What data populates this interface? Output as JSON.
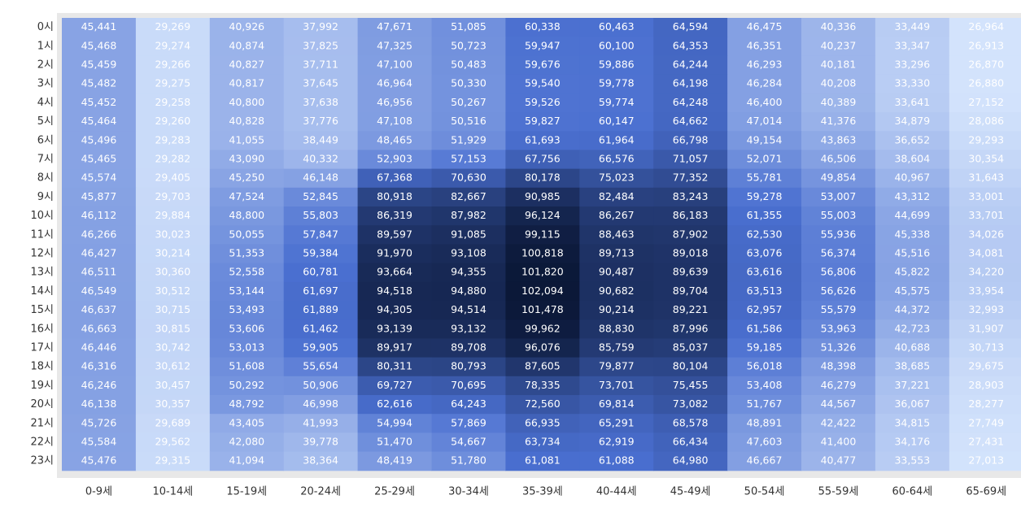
{
  "chart_data": {
    "type": "heatmap",
    "x_categories": [
      "0-9세",
      "10-14세",
      "15-19세",
      "20-24세",
      "25-29세",
      "30-34세",
      "35-39세",
      "40-44세",
      "45-49세",
      "50-54세",
      "55-59세",
      "60-64세",
      "65-69세"
    ],
    "y_categories": [
      "0시",
      "1시",
      "2시",
      "3시",
      "4시",
      "5시",
      "6시",
      "7시",
      "8시",
      "9시",
      "10시",
      "11시",
      "12시",
      "13시",
      "14시",
      "15시",
      "16시",
      "17시",
      "18시",
      "19시",
      "20시",
      "21시",
      "22시",
      "23시"
    ],
    "colors": [
      "#d3e3fc",
      "#4a6fd0",
      "#0b1838"
    ],
    "values": [
      [
        45441,
        29269,
        40926,
        37992,
        47671,
        51085,
        60338,
        60463,
        64594,
        46475,
        40336,
        33449,
        26964
      ],
      [
        45468,
        29274,
        40874,
        37825,
        47325,
        50723,
        59947,
        60100,
        64353,
        46351,
        40237,
        33347,
        26913
      ],
      [
        45459,
        29266,
        40827,
        37711,
        47100,
        50483,
        59676,
        59886,
        64244,
        46293,
        40181,
        33296,
        26870
      ],
      [
        45482,
        29275,
        40817,
        37645,
        46964,
        50330,
        59540,
        59778,
        64198,
        46284,
        40208,
        33330,
        26880
      ],
      [
        45452,
        29258,
        40800,
        37638,
        46956,
        50267,
        59526,
        59774,
        64248,
        46400,
        40389,
        33641,
        27152
      ],
      [
        45464,
        29260,
        40828,
        37776,
        47108,
        50516,
        59827,
        60147,
        64662,
        47014,
        41376,
        34879,
        28086
      ],
      [
        45496,
        29283,
        41055,
        38449,
        48465,
        51929,
        61693,
        61964,
        66798,
        49154,
        43863,
        36652,
        29293
      ],
      [
        45465,
        29282,
        43090,
        40332,
        52903,
        57153,
        67756,
        66576,
        71057,
        52071,
        46506,
        38604,
        30354
      ],
      [
        45574,
        29405,
        45250,
        46148,
        67368,
        70630,
        80178,
        75023,
        77352,
        55781,
        49854,
        40967,
        31643
      ],
      [
        45877,
        29703,
        47524,
        52845,
        80918,
        82667,
        90985,
        82484,
        83243,
        59278,
        53007,
        43312,
        33001
      ],
      [
        46112,
        29884,
        48800,
        55803,
        86319,
        87982,
        96124,
        86267,
        86183,
        61355,
        55003,
        44699,
        33701
      ],
      [
        46266,
        30023,
        50055,
        57847,
        89597,
        91085,
        99115,
        88463,
        87902,
        62530,
        55936,
        45338,
        34026
      ],
      [
        46427,
        30214,
        51353,
        59384,
        91970,
        93108,
        100818,
        89713,
        89018,
        63076,
        56374,
        45516,
        34081
      ],
      [
        46511,
        30360,
        52558,
        60781,
        93664,
        94355,
        101820,
        90487,
        89639,
        63616,
        56806,
        45822,
        34220
      ],
      [
        46549,
        30512,
        53144,
        61697,
        94518,
        94880,
        102094,
        90682,
        89704,
        63513,
        56626,
        45575,
        33954
      ],
      [
        46637,
        30715,
        53493,
        61889,
        94305,
        94514,
        101478,
        90214,
        89221,
        62957,
        55579,
        44372,
        32993
      ],
      [
        46663,
        30815,
        53606,
        61462,
        93139,
        93132,
        99962,
        88830,
        87996,
        61586,
        53963,
        42723,
        31907
      ],
      [
        46446,
        30742,
        53013,
        59905,
        89917,
        89708,
        96076,
        85759,
        85037,
        59185,
        51326,
        40688,
        30713
      ],
      [
        46316,
        30612,
        51608,
        55654,
        80311,
        80793,
        87605,
        79877,
        80104,
        56018,
        48398,
        38685,
        29675
      ],
      [
        46246,
        30457,
        50292,
        50906,
        69727,
        70695,
        78335,
        73701,
        75455,
        53408,
        46279,
        37221,
        28903
      ],
      [
        46138,
        30357,
        48792,
        46998,
        62616,
        64243,
        72560,
        69814,
        73082,
        51767,
        44567,
        36067,
        28277
      ],
      [
        45726,
        29689,
        43405,
        41993,
        54994,
        57869,
        66935,
        65291,
        68578,
        48891,
        42422,
        34815,
        27749
      ],
      [
        45584,
        29562,
        42080,
        39778,
        51470,
        54667,
        63734,
        62919,
        66434,
        47603,
        41400,
        34176,
        27431
      ],
      [
        45476,
        29315,
        41094,
        38364,
        48419,
        51780,
        61081,
        61088,
        64980,
        46667,
        40477,
        33553,
        27013
      ]
    ],
    "value_labels": [
      [
        "45,441",
        "29,269",
        "40,926",
        "37,992",
        "47,671",
        "51,085",
        "60,338",
        "60,463",
        "64,594",
        "46,475",
        "40,336",
        "33,449",
        "26,964"
      ],
      [
        "45,468",
        "29,274",
        "40,874",
        "37,825",
        "47,325",
        "50,723",
        "59,947",
        "60,100",
        "64,353",
        "46,351",
        "40,237",
        "33,347",
        "26,913"
      ],
      [
        "45,459",
        "29,266",
        "40,827",
        "37,711",
        "47,100",
        "50,483",
        "59,676",
        "59,886",
        "64,244",
        "46,293",
        "40,181",
        "33,296",
        "26,870"
      ],
      [
        "45,482",
        "29,275",
        "40,817",
        "37,645",
        "46,964",
        "50,330",
        "59,540",
        "59,778",
        "64,198",
        "46,284",
        "40,208",
        "33,330",
        "26,880"
      ],
      [
        "45,452",
        "29,258",
        "40,800",
        "37,638",
        "46,956",
        "50,267",
        "59,526",
        "59,774",
        "64,248",
        "46,400",
        "40,389",
        "33,641",
        "27,152"
      ],
      [
        "45,464",
        "29,260",
        "40,828",
        "37,776",
        "47,108",
        "50,516",
        "59,827",
        "60,147",
        "64,662",
        "47,014",
        "41,376",
        "34,879",
        "28,086"
      ],
      [
        "45,496",
        "29,283",
        "41,055",
        "38,449",
        "48,465",
        "51,929",
        "61,693",
        "61,964",
        "66,798",
        "49,154",
        "43,863",
        "36,652",
        "29,293"
      ],
      [
        "45,465",
        "29,282",
        "43,090",
        "40,332",
        "52,903",
        "57,153",
        "67,756",
        "66,576",
        "71,057",
        "52,071",
        "46,506",
        "38,604",
        "30,354"
      ],
      [
        "45,574",
        "29,405",
        "45,250",
        "46,148",
        "67,368",
        "70,630",
        "80,178",
        "75,023",
        "77,352",
        "55,781",
        "49,854",
        "40,967",
        "31,643"
      ],
      [
        "45,877",
        "29,703",
        "47,524",
        "52,845",
        "80,918",
        "82,667",
        "90,985",
        "82,484",
        "83,243",
        "59,278",
        "53,007",
        "43,312",
        "33,001"
      ],
      [
        "46,112",
        "29,884",
        "48,800",
        "55,803",
        "86,319",
        "87,982",
        "96,124",
        "86,267",
        "86,183",
        "61,355",
        "55,003",
        "44,699",
        "33,701"
      ],
      [
        "46,266",
        "30,023",
        "50,055",
        "57,847",
        "89,597",
        "91,085",
        "99,115",
        "88,463",
        "87,902",
        "62,530",
        "55,936",
        "45,338",
        "34,026"
      ],
      [
        "46,427",
        "30,214",
        "51,353",
        "59,384",
        "91,970",
        "93,108",
        "100,818",
        "89,713",
        "89,018",
        "63,076",
        "56,374",
        "45,516",
        "34,081"
      ],
      [
        "46,511",
        "30,360",
        "52,558",
        "60,781",
        "93,664",
        "94,355",
        "101,820",
        "90,487",
        "89,639",
        "63,616",
        "56,806",
        "45,822",
        "34,220"
      ],
      [
        "46,549",
        "30,512",
        "53,144",
        "61,697",
        "94,518",
        "94,880",
        "102,094",
        "90,682",
        "89,704",
        "63,513",
        "56,626",
        "45,575",
        "33,954"
      ],
      [
        "46,637",
        "30,715",
        "53,493",
        "61,889",
        "94,305",
        "94,514",
        "101,478",
        "90,214",
        "89,221",
        "62,957",
        "55,579",
        "44,372",
        "32,993"
      ],
      [
        "46,663",
        "30,815",
        "53,606",
        "61,462",
        "93,139",
        "93,132",
        "99,962",
        "88,830",
        "87,996",
        "61,586",
        "53,963",
        "42,723",
        "31,907"
      ],
      [
        "46,446",
        "30,742",
        "53,013",
        "59,905",
        "89,917",
        "89,708",
        "96,076",
        "85,759",
        "85,037",
        "59,185",
        "51,326",
        "40,688",
        "30,713"
      ],
      [
        "46,316",
        "30,612",
        "51,608",
        "55,654",
        "80,311",
        "80,793",
        "87,605",
        "79,877",
        "80,104",
        "56,018",
        "48,398",
        "38,685",
        "29,675"
      ],
      [
        "46,246",
        "30,457",
        "50,292",
        "50,906",
        "69,727",
        "70,695",
        "78,335",
        "73,701",
        "75,455",
        "53,408",
        "46,279",
        "37,221",
        "28,903"
      ],
      [
        "46,138",
        "30,357",
        "48,792",
        "46,998",
        "62,616",
        "64,243",
        "72,560",
        "69,814",
        "73,082",
        "51,767",
        "44,567",
        "36,067",
        "28,277"
      ],
      [
        "45,726",
        "29,689",
        "43,405",
        "41,993",
        "54,994",
        "57,869",
        "66,935",
        "65,291",
        "68,578",
        "48,891",
        "42,422",
        "34,815",
        "27,749"
      ],
      [
        "45,584",
        "29,562",
        "42,080",
        "39,778",
        "51,470",
        "54,667",
        "63,734",
        "62,919",
        "66,434",
        "47,603",
        "41,400",
        "34,176",
        "27,431"
      ],
      [
        "45,476",
        "29,315",
        "41,094",
        "38,364",
        "48,419",
        "51,780",
        "61,081",
        "61,088",
        "64,980",
        "46,667",
        "40,477",
        "33,553",
        "27,013"
      ]
    ]
  }
}
